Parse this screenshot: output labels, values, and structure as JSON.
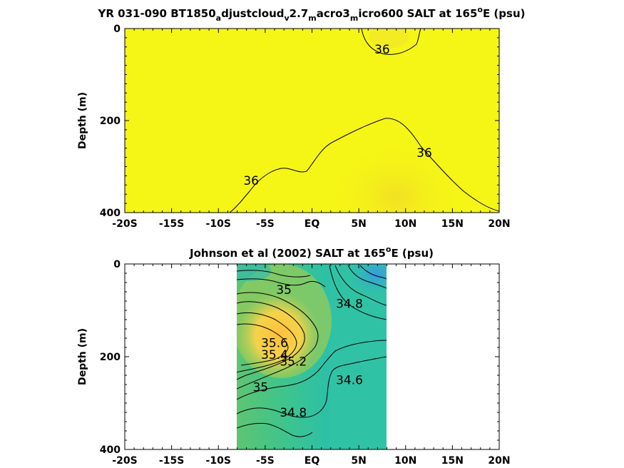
{
  "chart_data": [
    {
      "type": "contour",
      "title": "YR 031-090 BT1850",
      "title_sub1": "a",
      "title_mid1": "djustcloud",
      "title_sub2": "v",
      "title_mid2": "2.7",
      "title_sub3": "m",
      "title_mid3": "acro3",
      "title_sub4": "m",
      "title_mid4": "icro600 SALT at 165",
      "title_sup": "o",
      "title_end": "E (psu)",
      "ylabel": "Depth (m)",
      "xlim": [
        -20,
        20
      ],
      "ylim": [
        0,
        400
      ],
      "x_ticks": [
        "-20S",
        "-15S",
        "-10S",
        "-5S",
        "EQ",
        "5N",
        "10N",
        "15N",
        "20N"
      ],
      "y_ticks": [
        "0",
        "200",
        "400"
      ],
      "fill_color": "#f5f516",
      "contour_labels": [
        {
          "value": "36",
          "x": 7.5,
          "y": 45
        },
        {
          "value": "36",
          "x": 12,
          "y": 270
        },
        {
          "value": "36",
          "x": -6.5,
          "y": 330
        }
      ]
    },
    {
      "type": "contour",
      "title": "Johnson et al (2002) SALT at 165",
      "title_sup": "o",
      "title_end": "E (psu)",
      "ylabel": "Depth (m)",
      "xlim": [
        -20,
        20
      ],
      "ylim": [
        0,
        400
      ],
      "data_x_range": [
        -8,
        8
      ],
      "x_ticks": [
        "-20S",
        "-15S",
        "-10S",
        "-5S",
        "EQ",
        "5N",
        "10N",
        "15N",
        "20N"
      ],
      "y_ticks": [
        "0",
        "200",
        "400"
      ],
      "contour_labels": [
        {
          "value": "35",
          "x": -3,
          "y": 55
        },
        {
          "value": "34.8",
          "x": 4,
          "y": 85
        },
        {
          "value": "35.6",
          "x": -4,
          "y": 170
        },
        {
          "value": "35.4",
          "x": -4,
          "y": 195
        },
        {
          "value": "35.2",
          "x": -2,
          "y": 210
        },
        {
          "value": "35",
          "x": -5.5,
          "y": 265
        },
        {
          "value": "34.6",
          "x": 4,
          "y": 250
        },
        {
          "value": "34.8",
          "x": -2,
          "y": 320
        }
      ]
    }
  ],
  "colors": {
    "yellow": "#f5f516",
    "orange": "#fdb73a",
    "green": "#52c47b",
    "teal": "#28c1a6",
    "blue": "#2d9fd4"
  }
}
